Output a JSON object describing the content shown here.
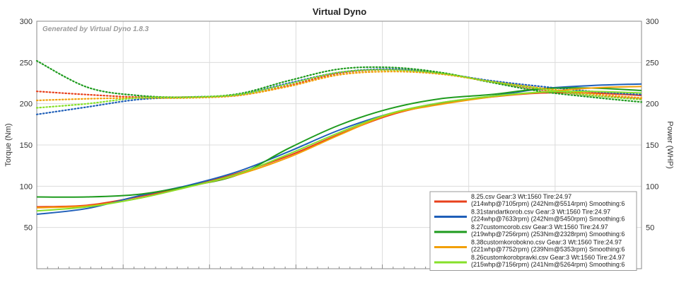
{
  "chart_data": {
    "type": "line",
    "title": "Virtual Dyno",
    "watermark": "Generated by Virtual Dyno 1.8.3",
    "ylabel": "Torque (Nm)",
    "y2label": "Power (WHP)",
    "ylim": [
      0,
      300
    ],
    "y2lim": [
      0,
      300
    ],
    "yticks": [
      50,
      100,
      150,
      200,
      250,
      300
    ],
    "y2ticks": [
      50,
      100,
      150,
      200,
      250,
      300
    ],
    "xlim": [
      2000,
      8000
    ],
    "grid": true,
    "legend_position": "bottom-right",
    "x": [
      2000,
      2500,
      3000,
      3500,
      4000,
      4500,
      5000,
      5500,
      6000,
      6500,
      7000,
      7500,
      8000
    ],
    "series": [
      {
        "name": "8.25.csv Gear:3 Wt:1560 Tire:24.97",
        "detail": "(214whp@7105rpm) (242Nm@5514rpm) Smoothing:6",
        "color": "#e8401c",
        "torque": [
          215,
          211,
          208,
          208,
          210,
          222,
          237,
          241,
          237,
          227,
          217,
          210,
          206
        ],
        "power": [
          75,
          77,
          87,
          100,
          116,
          137,
          163,
          186,
          200,
          208,
          213,
          213,
          210
        ]
      },
      {
        "name": "8.31standartkorob.csv Gear:3 Wt:1560 Tire:24.97",
        "detail": "(224whp@7633rpm) (242Nm@5450rpm) Smoothing:6",
        "color": "#1f5fb8",
        "torque": [
          187,
          196,
          205,
          208,
          211,
          225,
          238,
          242,
          237,
          228,
          221,
          215,
          211
        ],
        "power": [
          66,
          73,
          88,
          101,
          118,
          142,
          168,
          188,
          201,
          209,
          218,
          222,
          224
        ]
      },
      {
        "name": "8.27customcorob.csv Gear:3 Wt:1560 Tire:24.97",
        "detail": "(219whp@7256rpm) (253Nm@2328rpm) Smoothing:6",
        "color": "#1e9b1e",
        "torque": [
          252,
          220,
          210,
          208,
          212,
          228,
          242,
          244,
          238,
          226,
          215,
          208,
          202
        ],
        "power": [
          87,
          87,
          90,
          100,
          114,
          146,
          174,
          194,
          206,
          211,
          218,
          219,
          216
        ]
      },
      {
        "name": "8.38customkorobokno.csv Gear:3 Wt:1560 Tire:24.97",
        "detail": "(221whp@7752rpm) (239Nm@5353rpm) Smoothing:6",
        "color": "#f2a007",
        "torque": [
          204,
          206,
          207,
          207,
          210,
          221,
          235,
          239,
          236,
          227,
          219,
          212,
          207
        ],
        "power": [
          74,
          76,
          85,
          99,
          114,
          135,
          162,
          187,
          199,
          208,
          214,
          219,
          221
        ]
      },
      {
        "name": "8.26customkorobpravki.csv Gear:3 Wt:1560 Tire:24.97",
        "detail": "(215whp@7156rpm) (241Nm@5264rpm) Smoothing:6",
        "color": "#86e02a",
        "torque": [
          195,
          200,
          207,
          208,
          211,
          224,
          238,
          241,
          237,
          227,
          218,
          210,
          205
        ],
        "power": [
          70,
          75,
          85,
          99,
          115,
          139,
          165,
          188,
          201,
          209,
          214,
          215,
          213
        ]
      }
    ]
  }
}
